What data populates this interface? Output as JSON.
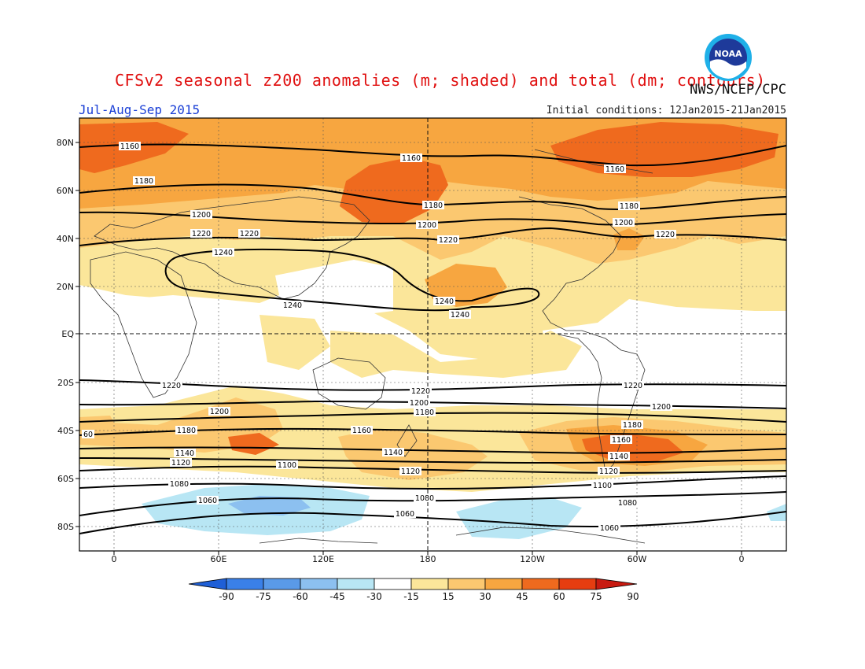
{
  "header": {
    "title": "CFSv2 seasonal z200 anomalies (m; shaded) and total (dm; contours)",
    "credit": "NWS/NCEP/CPC",
    "period": "Jul-Aug-Sep 2015",
    "initial_conditions": "Initial conditions: 12Jan2015-21Jan2015",
    "logo_text": "NOAA"
  },
  "axes": {
    "lat_labels": [
      "80N",
      "60N",
      "40N",
      "20N",
      "EQ",
      "20S",
      "40S",
      "60S",
      "80S"
    ],
    "lon_labels": [
      "0",
      "60E",
      "120E",
      "180",
      "120W",
      "60W",
      "0"
    ]
  },
  "colorbar": {
    "labels": [
      "-90",
      "-75",
      "-60",
      "-45",
      "-30",
      "-15",
      "15",
      "30",
      "45",
      "60",
      "75",
      "90"
    ],
    "colors": [
      "#1f5fd6",
      "#3a80e8",
      "#5a9ae8",
      "#8cc0f0",
      "#b8e6f4",
      "#ffffff",
      "#fbe69a",
      "#fbc870",
      "#f7a640",
      "#ef6a1e",
      "#e63d10",
      "#c81a10"
    ]
  },
  "contour_labels": {
    "nh": [
      "1160",
      "1160",
      "1160",
      "1180",
      "1180",
      "1180",
      "1200",
      "1200",
      "1200",
      "1220",
      "1220",
      "1220",
      "1220",
      "1240",
      "1240",
      "1240",
      "1240"
    ],
    "sh": [
      "1220",
      "1220",
      "1220",
      "1200",
      "1200",
      "1200",
      "1180",
      "1180",
      "1180",
      "1160",
      "1160",
      "60",
      "1140",
      "1140",
      "1140",
      "1120",
      "1120",
      "1120",
      "1100",
      "1100",
      "1080",
      "1080",
      "1080",
      "1060",
      "1060",
      "1060"
    ]
  }
}
